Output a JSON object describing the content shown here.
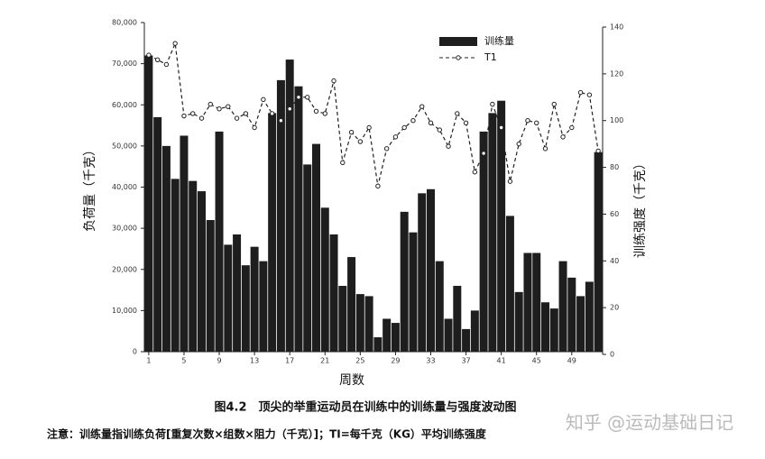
{
  "chart_data": {
    "type": "bar-line",
    "x_label": "周数",
    "y_label": "负荷量（千克）",
    "y2_label": "训练强度（千克）",
    "x": [
      1,
      2,
      3,
      4,
      5,
      6,
      7,
      8,
      9,
      10,
      11,
      12,
      13,
      14,
      15,
      16,
      17,
      18,
      19,
      20,
      21,
      22,
      23,
      24,
      25,
      26,
      27,
      28,
      29,
      30,
      31,
      32,
      33,
      34,
      35,
      36,
      37,
      38,
      39,
      40,
      41,
      42,
      43,
      44,
      45,
      46,
      47,
      48,
      49,
      50,
      51,
      52
    ],
    "xlim": [
      0.5,
      52.5
    ],
    "xticks": [
      1,
      5,
      9,
      13,
      17,
      21,
      25,
      29,
      33,
      37,
      41,
      45,
      49
    ],
    "ylim": [
      0,
      80000
    ],
    "yticks": [
      0,
      {
        "value": 10000,
        "label": "10,000"
      },
      {
        "value": 20000,
        "label": "20,000"
      },
      {
        "value": 30000,
        "label": "30,000"
      },
      {
        "value": 40000,
        "label": "40,000"
      },
      {
        "value": 50000,
        "label": "50,000"
      },
      {
        "value": 60000,
        "label": "60,000"
      },
      {
        "value": 70000,
        "label": "70,000"
      },
      {
        "value": 80000,
        "label": "80,000"
      }
    ],
    "y2lim": [
      0,
      140
    ],
    "y2ticks": [
      0,
      20,
      40,
      60,
      80,
      100,
      120,
      140
    ],
    "series": [
      {
        "name": "训练量",
        "color": "#1e1e1e",
        "kind": "bar",
        "values": [
          72000,
          57000,
          50000,
          42000,
          52500,
          41500,
          39000,
          32000,
          53500,
          26000,
          28500,
          21000,
          25500,
          22000,
          58000,
          66000,
          71000,
          64500,
          45500,
          50500,
          35000,
          28500,
          16000,
          23000,
          14000,
          13500,
          3500,
          8000,
          7000,
          34000,
          29000,
          38500,
          39500,
          22000,
          8000,
          16000,
          5500,
          10000,
          53500,
          58000,
          61000,
          33000,
          14500,
          24000,
          24000,
          12000,
          10500,
          22000,
          18000,
          13500,
          17000,
          48500
        ]
      },
      {
        "name": "T1",
        "color": "#222222",
        "kind": "line",
        "axis": "y2",
        "values": [
          128,
          126,
          124,
          133,
          102,
          103,
          101,
          107,
          105,
          106,
          101,
          103,
          97,
          109,
          103,
          100,
          105,
          110,
          110,
          104,
          103,
          117,
          82,
          95,
          91,
          97,
          72,
          88,
          93,
          97,
          100,
          106,
          99,
          96,
          89,
          103,
          99,
          78,
          86,
          107,
          97,
          74,
          90,
          100,
          99,
          88,
          107,
          93,
          97,
          112,
          111,
          87
        ]
      }
    ]
  },
  "caption": "图4.2　顶尖的举重运动员在训练中的训练量与强度波动图",
  "note": "注意：训练量指训练负荷[重复次数×组数×阻力（千克）]；TI=每千克（KG）平均训练强度",
  "watermark": "知乎 @运动基础日记"
}
